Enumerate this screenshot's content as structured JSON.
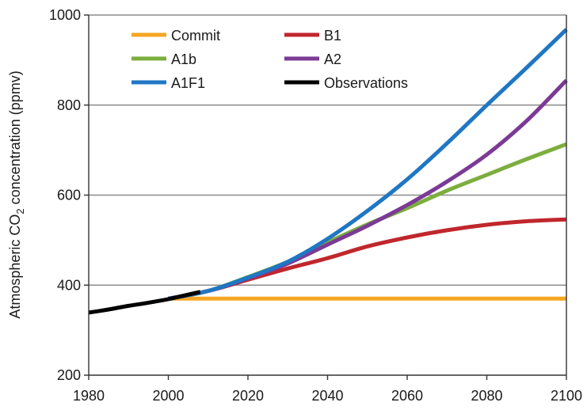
{
  "chart_data": {
    "type": "line",
    "ylabel": {
      "prefix": "Atmospheric CO",
      "subscript": "2",
      "suffix": " concentration (ppmv)"
    },
    "xlim": [
      1980,
      2100
    ],
    "ylim": [
      200,
      1000
    ],
    "x_ticks": [
      1980,
      2000,
      2020,
      2040,
      2060,
      2080,
      2100
    ],
    "y_ticks": [
      200,
      400,
      600,
      800,
      1000
    ],
    "x_tick_labels": [
      "1980",
      "2000",
      "2020",
      "2040",
      "2060",
      "2080",
      "2100"
    ],
    "y_tick_labels": [
      "200",
      "400",
      "600",
      "800",
      "1000"
    ],
    "grid": "horizontal",
    "legend_placement": "top-left",
    "series": [
      {
        "name": "Commit",
        "color": "#f5a623",
        "x": [
          2000,
          2010,
          2020,
          2030,
          2040,
          2050,
          2060,
          2070,
          2080,
          2090,
          2100
        ],
        "y": [
          370,
          370,
          370,
          370,
          370,
          370,
          370,
          370,
          370,
          370,
          370
        ]
      },
      {
        "name": "B1",
        "color": "#c0272d",
        "x": [
          2000,
          2010,
          2020,
          2030,
          2040,
          2050,
          2060,
          2070,
          2080,
          2090,
          2100
        ],
        "y": [
          370,
          387,
          412,
          437,
          460,
          486,
          506,
          522,
          534,
          542,
          546
        ]
      },
      {
        "name": "A1b",
        "color": "#7cae3e",
        "x": [
          2000,
          2010,
          2020,
          2030,
          2040,
          2050,
          2060,
          2070,
          2080,
          2090,
          2100
        ],
        "y": [
          370,
          387,
          418,
          452,
          495,
          535,
          571,
          610,
          645,
          680,
          713
        ]
      },
      {
        "name": "A2",
        "color": "#7b3a96",
        "x": [
          2000,
          2010,
          2020,
          2030,
          2040,
          2050,
          2060,
          2070,
          2080,
          2090,
          2100
        ],
        "y": [
          370,
          387,
          415,
          448,
          490,
          532,
          578,
          630,
          690,
          765,
          855
        ]
      },
      {
        "name": "A1F1",
        "color": "#1f77c4",
        "x": [
          2000,
          2010,
          2020,
          2030,
          2040,
          2050,
          2060,
          2070,
          2080,
          2090,
          2100
        ],
        "y": [
          370,
          387,
          417,
          452,
          503,
          565,
          635,
          715,
          800,
          883,
          968
        ]
      },
      {
        "name": "Observations",
        "color": "#000000",
        "x": [
          1980,
          1985,
          1990,
          1995,
          2000,
          2005,
          2008
        ],
        "y": [
          339,
          346,
          354,
          361,
          369,
          379,
          385
        ]
      }
    ],
    "legend_order": [
      "Commit",
      "B1",
      "A1b",
      "A2",
      "A1F1",
      "Observations"
    ]
  }
}
